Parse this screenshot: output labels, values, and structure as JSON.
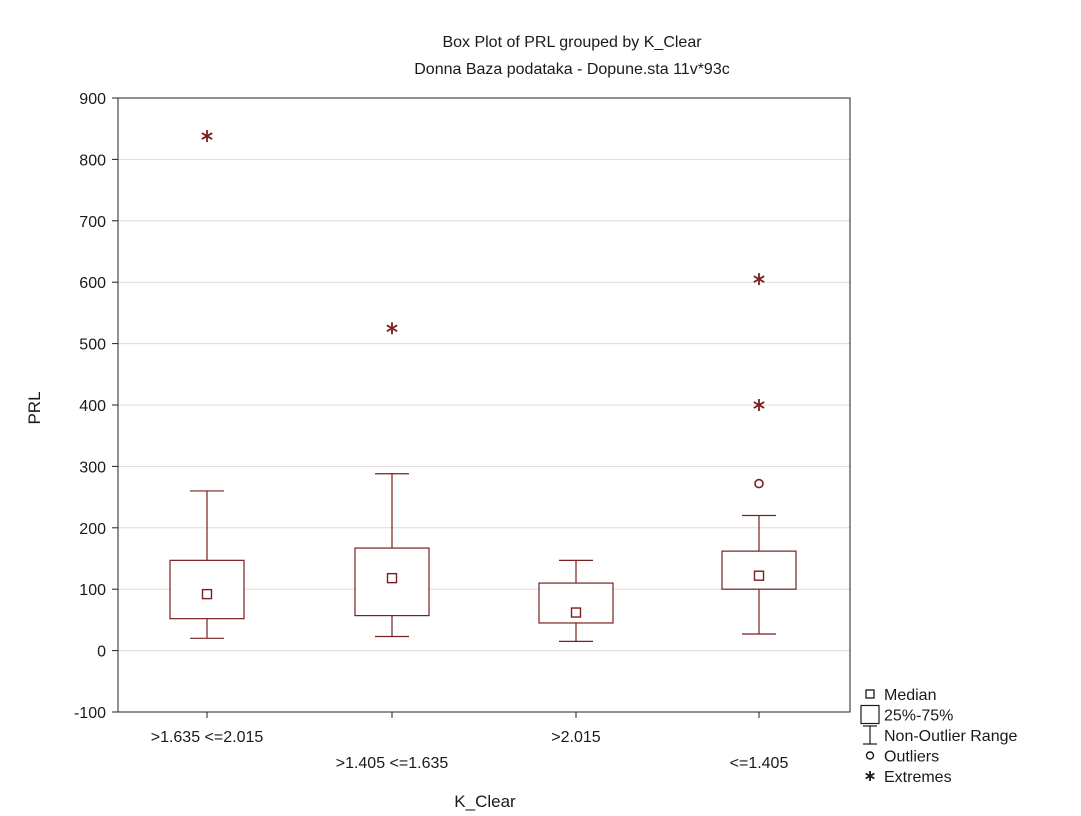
{
  "chart_data": {
    "type": "box",
    "title": "Box Plot of PRL grouped by  K_Clear",
    "subtitle": "Donna Baza podataka - Dopune.sta 11v*93c",
    "xlabel": "K_Clear",
    "ylabel": "PRL",
    "ylim": [
      -100,
      900
    ],
    "yticks": [
      -100,
      0,
      100,
      200,
      300,
      400,
      500,
      600,
      700,
      800,
      900
    ],
    "grid": true,
    "legend_position": "bottom-right",
    "colors": {
      "series": "#7a1f1f",
      "grid": "#dcdcdc",
      "axis": "#222222"
    },
    "categories": [
      ">1.635 <=2.015",
      ">1.405 <=1.635",
      ">2.015",
      "<=1.405"
    ],
    "boxes": [
      {
        "category": ">1.635 <=2.015",
        "median": 92,
        "q1": 52,
        "q3": 147,
        "whisker_low": 20,
        "whisker_high": 260,
        "outliers": [],
        "extremes": [
          838
        ]
      },
      {
        "category": ">1.405 <=1.635",
        "median": 118,
        "q1": 57,
        "q3": 167,
        "whisker_low": 23,
        "whisker_high": 288,
        "outliers": [],
        "extremes": [
          525
        ]
      },
      {
        "category": ">2.015",
        "median": 62,
        "q1": 45,
        "q3": 110,
        "whisker_low": 15,
        "whisker_high": 147,
        "outliers": [],
        "extremes": []
      },
      {
        "category": "<=1.405",
        "median": 122,
        "q1": 100,
        "q3": 162,
        "whisker_low": 27,
        "whisker_high": 220,
        "outliers": [
          272
        ],
        "extremes": [
          400,
          605
        ]
      }
    ],
    "legend": [
      {
        "symbol": "median",
        "label": "Median"
      },
      {
        "symbol": "box",
        "label": "25%-75%"
      },
      {
        "symbol": "whisker",
        "label": "Non-Outlier Range"
      },
      {
        "symbol": "outlier",
        "label": "Outliers"
      },
      {
        "symbol": "extreme",
        "label": "Extremes"
      }
    ]
  }
}
